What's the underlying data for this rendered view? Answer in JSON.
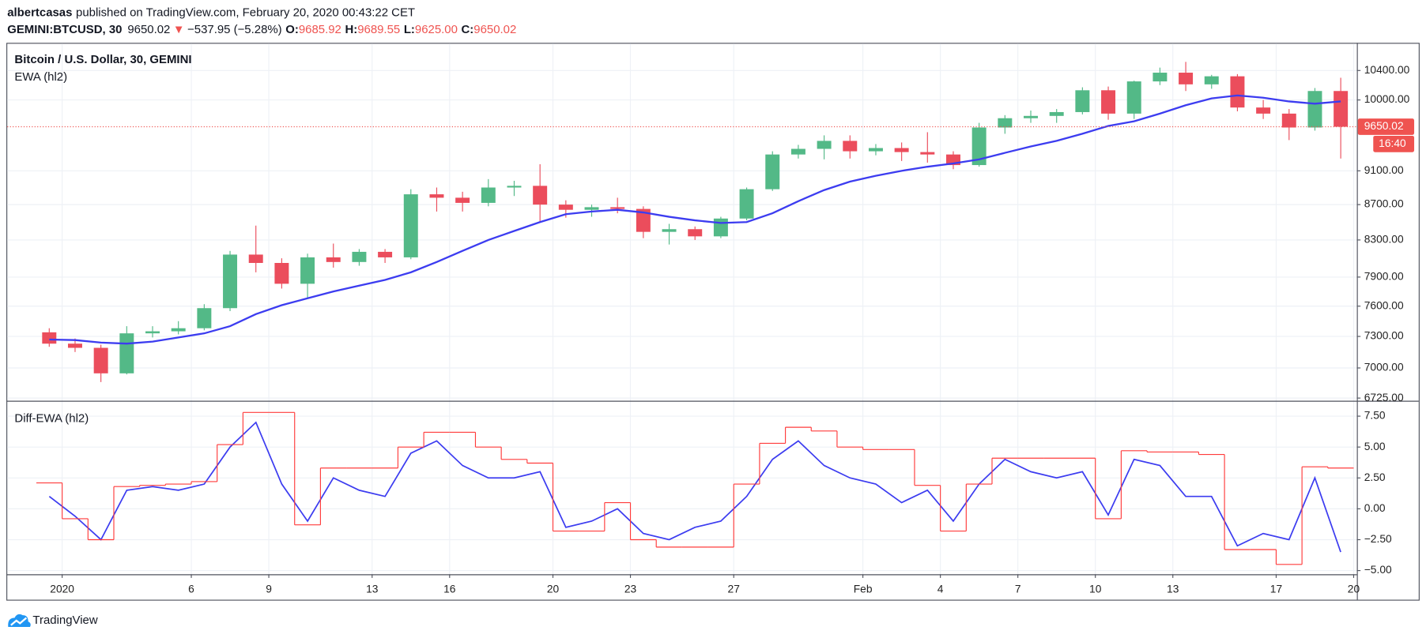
{
  "header": {
    "author": "albertcasas",
    "published": "published on TradingView.com, February 20, 2020 00:43:22 CET",
    "symbol": "GEMINI:BTCUSD, 30",
    "last": "9650.02",
    "arrow": "▼",
    "change": "−537.95 (−5.28%)",
    "o_label": "O:",
    "open": "9685.92",
    "h_label": "H:",
    "high": "9689.55",
    "l_label": "L:",
    "low": "9625.00",
    "c_label": "C:",
    "close": "9650.02"
  },
  "footer": {
    "brand": "TradingView"
  },
  "chart_data": [
    {
      "type": "candlestick",
      "title": "Bitcoin / U.S. Dollar, 30, GEMINI",
      "x": [
        "2019-12-31",
        "2020-01-01",
        "2020-01-02",
        "2020-01-03",
        "2020-01-04",
        "2020-01-05",
        "2020-01-06",
        "2020-01-07",
        "2020-01-08",
        "2020-01-09",
        "2020-01-10",
        "2020-01-11",
        "2020-01-12",
        "2020-01-13",
        "2020-01-14",
        "2020-01-15",
        "2020-01-16",
        "2020-01-17",
        "2020-01-18",
        "2020-01-19",
        "2020-01-20",
        "2020-01-21",
        "2020-01-22",
        "2020-01-23",
        "2020-01-24",
        "2020-01-25",
        "2020-01-26",
        "2020-01-27",
        "2020-01-28",
        "2020-01-29",
        "2020-01-30",
        "2020-01-31",
        "2020-02-01",
        "2020-02-02",
        "2020-02-03",
        "2020-02-04",
        "2020-02-05",
        "2020-02-06",
        "2020-02-07",
        "2020-02-08",
        "2020-02-09",
        "2020-02-10",
        "2020-02-11",
        "2020-02-12",
        "2020-02-13",
        "2020-02-14",
        "2020-02-15",
        "2020-02-16",
        "2020-02-17",
        "2020-02-18",
        "2020-02-19"
      ],
      "open": [
        7340,
        7230,
        7190,
        6950,
        7330,
        7350,
        7380,
        7580,
        8140,
        8050,
        7830,
        8110,
        8060,
        8170,
        8110,
        8820,
        8780,
        8720,
        8900,
        8920,
        8700,
        8640,
        8670,
        8650,
        8390,
        8420,
        8340,
        8540,
        8880,
        9300,
        9370,
        9470,
        9340,
        9380,
        9330,
        9300,
        9170,
        9640,
        9760,
        9790,
        9840,
        10130,
        9820,
        10250,
        10370,
        10210,
        10320,
        9900,
        9820,
        9640,
        10120
      ],
      "high": [
        7380,
        7280,
        7220,
        7400,
        7400,
        7450,
        7620,
        8180,
        8460,
        8100,
        8150,
        8260,
        8200,
        8200,
        8880,
        8900,
        8850,
        9000,
        8980,
        9180,
        8750,
        8700,
        8780,
        8680,
        8480,
        8450,
        8560,
        8900,
        9340,
        9420,
        9540,
        9540,
        9430,
        9450,
        9580,
        9340,
        9700,
        9800,
        9860,
        9880,
        10170,
        10180,
        10260,
        10440,
        10520,
        10340,
        10350,
        10000,
        9880,
        10160,
        10300
      ],
      "low": [
        7200,
        7150,
        6870,
        6940,
        7290,
        7320,
        7360,
        7550,
        7950,
        7780,
        7680,
        8000,
        8020,
        8050,
        8090,
        8620,
        8620,
        8680,
        8800,
        8500,
        8550,
        8560,
        8600,
        8320,
        8250,
        8300,
        8320,
        8520,
        8860,
        9250,
        9240,
        9250,
        9290,
        9220,
        9200,
        9120,
        9150,
        9560,
        9700,
        9700,
        9810,
        9740,
        9750,
        10200,
        10120,
        10150,
        9850,
        9750,
        9480,
        9600,
        9250
      ],
      "close": [
        7230,
        7190,
        6950,
        7330,
        7350,
        7380,
        7580,
        8140,
        8050,
        7830,
        8110,
        8060,
        8170,
        8110,
        8820,
        8780,
        8720,
        8900,
        8920,
        8700,
        8640,
        8670,
        8650,
        8390,
        8420,
        8340,
        8540,
        8880,
        9300,
        9370,
        9470,
        9340,
        9380,
        9330,
        9300,
        9170,
        9640,
        9760,
        9790,
        9840,
        10130,
        9820,
        10250,
        10370,
        10210,
        10320,
        9900,
        9820,
        9640,
        10120,
        9650.02
      ],
      "up_color": "#53b987",
      "down_color": "#eb4d5c",
      "overlay": {
        "name": "EWA (hl2)",
        "color": "#3c3cf0",
        "values": [
          7270,
          7265,
          7240,
          7230,
          7250,
          7290,
          7330,
          7400,
          7520,
          7610,
          7680,
          7750,
          7810,
          7870,
          7950,
          8060,
          8180,
          8300,
          8400,
          8500,
          8590,
          8620,
          8640,
          8610,
          8560,
          8520,
          8490,
          8500,
          8600,
          8740,
          8870,
          8970,
          9040,
          9100,
          9150,
          9190,
          9240,
          9320,
          9400,
          9470,
          9560,
          9660,
          9720,
          9820,
          9930,
          10020,
          10060,
          10030,
          9980,
          9950,
          9980
        ]
      },
      "xlim": [
        "2019-12-29T21:00",
        "2020-02-20T03:00"
      ],
      "ylim": [
        6709,
        10777
      ],
      "log_scale": true,
      "yticks": [
        {
          "value": 6725,
          "label": "6725.00"
        },
        {
          "value": 7000,
          "label": "7000.00"
        },
        {
          "value": 7300,
          "label": "7300.00"
        },
        {
          "value": 7600,
          "label": "7600.00"
        },
        {
          "value": 7900,
          "label": "7900.00"
        },
        {
          "value": 8300,
          "label": "8300.00"
        },
        {
          "value": 8700,
          "label": "8700.00"
        },
        {
          "value": 9100,
          "label": "9100.00"
        },
        {
          "value": 10000,
          "label": "10000.00"
        },
        {
          "value": 10400,
          "label": "10400.00"
        }
      ],
      "grid": true,
      "last_price": 9650.02,
      "last_price_color": "#ef5350",
      "countdown": "16:40"
    },
    {
      "type": "line",
      "title": "Diff-EWA (hl2)",
      "x": [
        "2019-12-31",
        "2020-01-01",
        "2020-01-02",
        "2020-01-03",
        "2020-01-04",
        "2020-01-05",
        "2020-01-06",
        "2020-01-07",
        "2020-01-08",
        "2020-01-09",
        "2020-01-10",
        "2020-01-11",
        "2020-01-12",
        "2020-01-13",
        "2020-01-14",
        "2020-01-15",
        "2020-01-16",
        "2020-01-17",
        "2020-01-18",
        "2020-01-19",
        "2020-01-20",
        "2020-01-21",
        "2020-01-22",
        "2020-01-23",
        "2020-01-24",
        "2020-01-25",
        "2020-01-26",
        "2020-01-27",
        "2020-01-28",
        "2020-01-29",
        "2020-01-30",
        "2020-01-31",
        "2020-02-01",
        "2020-02-02",
        "2020-02-03",
        "2020-02-04",
        "2020-02-05",
        "2020-02-06",
        "2020-02-07",
        "2020-02-08",
        "2020-02-09",
        "2020-02-10",
        "2020-02-11",
        "2020-02-12",
        "2020-02-13",
        "2020-02-14",
        "2020-02-15",
        "2020-02-16",
        "2020-02-17",
        "2020-02-18",
        "2020-02-19"
      ],
      "series": [
        {
          "color": "#3c3cf0",
          "values": [
            1.0,
            -0.6,
            -2.5,
            1.5,
            1.8,
            1.5,
            2.0,
            5.0,
            7.0,
            2.0,
            -1.0,
            2.5,
            1.5,
            1.0,
            4.5,
            5.5,
            3.5,
            2.5,
            2.5,
            3.0,
            -1.5,
            -1.0,
            0.0,
            -2.0,
            -2.5,
            -1.5,
            -1.0,
            1.0,
            4.0,
            5.5,
            3.5,
            2.5,
            2.0,
            0.5,
            1.5,
            -1.0,
            2.0,
            4.0,
            3.0,
            2.5,
            3.0,
            -0.5,
            4.0,
            3.5,
            1.0,
            1.0,
            -3.0,
            -2.0,
            -2.5,
            2.5,
            -3.5
          ]
        },
        {
          "color": "#ff3b3b",
          "step": true,
          "values": [
            2.1,
            -0.8,
            -2.5,
            1.8,
            1.9,
            2.0,
            2.2,
            5.2,
            7.8,
            7.8,
            -1.3,
            3.3,
            3.3,
            3.3,
            5.0,
            6.2,
            6.2,
            5.0,
            4.0,
            3.7,
            -1.8,
            -1.8,
            0.5,
            -2.5,
            -3.1,
            -3.1,
            -3.1,
            2.0,
            5.3,
            6.6,
            6.3,
            5.0,
            4.8,
            4.8,
            1.9,
            -1.8,
            2.0,
            4.1,
            4.1,
            4.1,
            4.1,
            -0.8,
            4.7,
            4.6,
            4.6,
            4.4,
            -3.3,
            -3.3,
            -4.5,
            3.4,
            3.3
          ]
        }
      ],
      "xlim": [
        "2019-12-29T21:00",
        "2020-02-20T03:00"
      ],
      "ylim": [
        -5.3,
        8.6
      ],
      "yticks": [
        {
          "value": -5,
          "label": "−5.00"
        },
        {
          "value": -2.5,
          "label": "−2.50"
        },
        {
          "value": 0,
          "label": "0.00"
        },
        {
          "value": 2.5,
          "label": "2.50"
        },
        {
          "value": 5,
          "label": "5.00"
        },
        {
          "value": 7.5,
          "label": "7.50"
        }
      ],
      "xticks": [
        {
          "value": "2020-01-01",
          "label": "2020"
        },
        {
          "value": "2020-01-06",
          "label": "6"
        },
        {
          "value": "2020-01-09",
          "label": "9"
        },
        {
          "value": "2020-01-13",
          "label": "13"
        },
        {
          "value": "2020-01-16",
          "label": "16"
        },
        {
          "value": "2020-01-20",
          "label": "20"
        },
        {
          "value": "2020-01-23",
          "label": "23"
        },
        {
          "value": "2020-01-27",
          "label": "27"
        },
        {
          "value": "2020-02-01",
          "label": "Feb"
        },
        {
          "value": "2020-02-04",
          "label": "4"
        },
        {
          "value": "2020-02-07",
          "label": "7"
        },
        {
          "value": "2020-02-10",
          "label": "10"
        },
        {
          "value": "2020-02-13",
          "label": "13"
        },
        {
          "value": "2020-02-17",
          "label": "17"
        },
        {
          "value": "2020-02-20",
          "label": "20"
        }
      ],
      "grid": true
    }
  ]
}
